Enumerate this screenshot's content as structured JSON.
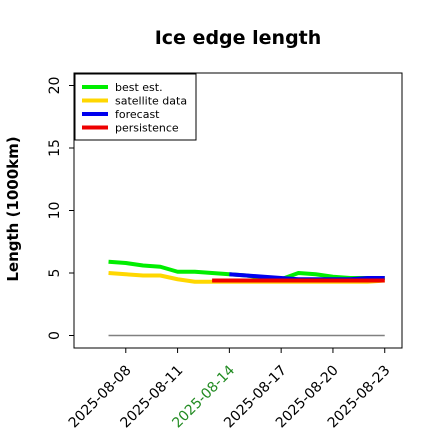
{
  "chart_data": {
    "type": "line",
    "title": "Ice edge length",
    "xlabel": "",
    "ylabel": "Length (1000km)",
    "ylim": [
      -1,
      21
    ],
    "xlim": [
      "2025-08-05",
      "2025-08-24"
    ],
    "yticks": [
      0,
      5,
      10,
      15,
      20
    ],
    "ytick_labels": [
      "0",
      "5",
      "10",
      "15",
      "20"
    ],
    "xticks": [
      "2025-08-08",
      "2025-08-11",
      "2025-08-14",
      "2025-08-17",
      "2025-08-20",
      "2025-08-23"
    ],
    "xtick_labels": [
      "2025-08-08",
      "2025-08-11",
      "2025-08-14",
      "2025-08-17",
      "2025-08-20",
      "2025-08-23"
    ],
    "highlighted_xtick": "2025-08-14",
    "highlight_color": "#228B22",
    "grid": false,
    "legend_position": "top-left",
    "series": [
      {
        "name": "best est.",
        "color": "#00ee00",
        "x": [
          "2025-08-07",
          "2025-08-08",
          "2025-08-09",
          "2025-08-10",
          "2025-08-11",
          "2025-08-12",
          "2025-08-13",
          "2025-08-14",
          "2025-08-15",
          "2025-08-16",
          "2025-08-17",
          "2025-08-18",
          "2025-08-19",
          "2025-08-20",
          "2025-08-21",
          "2025-08-22",
          "2025-08-23"
        ],
        "values": [
          5.9,
          5.8,
          5.6,
          5.5,
          5.1,
          5.1,
          5.0,
          4.9,
          4.8,
          4.6,
          4.5,
          5.0,
          4.9,
          4.7,
          4.6,
          4.6,
          4.6
        ]
      },
      {
        "name": "satellite data",
        "color": "#ffd700",
        "x": [
          "2025-08-07",
          "2025-08-08",
          "2025-08-09",
          "2025-08-10",
          "2025-08-11",
          "2025-08-12",
          "2025-08-13",
          "2025-08-14",
          "2025-08-15",
          "2025-08-16",
          "2025-08-17",
          "2025-08-18",
          "2025-08-19",
          "2025-08-20",
          "2025-08-21",
          "2025-08-22",
          "2025-08-23"
        ],
        "values": [
          5.0,
          4.9,
          4.8,
          4.8,
          4.5,
          4.3,
          4.3,
          4.3,
          4.3,
          4.3,
          4.3,
          4.3,
          4.3,
          4.3,
          4.3,
          4.3,
          4.4
        ]
      },
      {
        "name": "forecast",
        "color": "#0000ee",
        "x": [
          "2025-08-14",
          "2025-08-15",
          "2025-08-16",
          "2025-08-17",
          "2025-08-18",
          "2025-08-19",
          "2025-08-20",
          "2025-08-21",
          "2025-08-22",
          "2025-08-23"
        ],
        "values": [
          4.9,
          4.8,
          4.7,
          4.6,
          4.5,
          4.5,
          4.5,
          4.5,
          4.6,
          4.6
        ]
      },
      {
        "name": "persistence",
        "color": "#ee0000",
        "x": [
          "2025-08-13",
          "2025-08-23"
        ],
        "values": [
          4.4,
          4.4
        ]
      }
    ],
    "reference_line": {
      "color": "#808080",
      "x": [
        "2025-08-07",
        "2025-08-23"
      ],
      "values": [
        0,
        0
      ]
    }
  }
}
